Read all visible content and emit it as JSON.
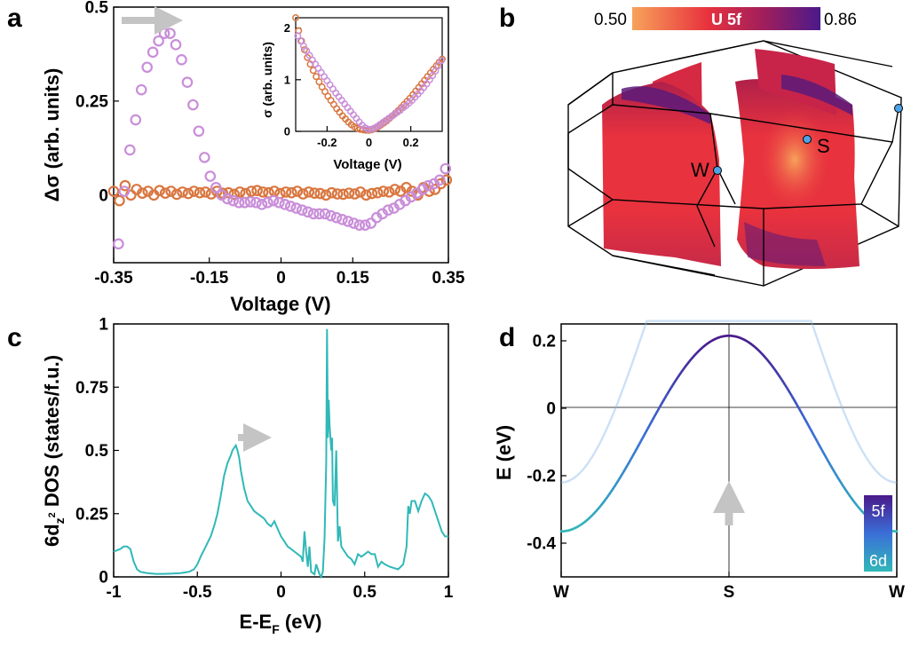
{
  "panel_labels": {
    "a": "a",
    "b": "b",
    "c": "c",
    "d": "d"
  },
  "colors": {
    "orange": "#d9763f",
    "violet": "#c98ed9",
    "teal": "#31b8b8",
    "gray_arrow": "#c4c4c4",
    "fs_red": "#e8323e",
    "fs_purple": "#5c1a7a",
    "fs_orange": "#f7a35a"
  },
  "chart_data": [
    {
      "id": "panel-a",
      "type": "scatter",
      "xlabel": "Voltage (V)",
      "ylabel": "Δσ (arb. units)",
      "xlim": [
        -0.35,
        0.35
      ],
      "ylim": [
        -0.18,
        0.5
      ],
      "xticks": [
        -0.35,
        -0.15,
        0,
        0.15,
        0.35
      ],
      "xtick_labels": [
        "-0.35",
        "-0.15",
        "0",
        "0.15",
        "0.35"
      ],
      "yticks": [
        0,
        0.25,
        0.5
      ],
      "ytick_labels": [
        "0",
        "0.25",
        "0.5"
      ],
      "series": [
        {
          "name": "orange",
          "x": [
            -0.35,
            -0.338,
            -0.326,
            -0.314,
            -0.302,
            -0.29,
            -0.278,
            -0.266,
            -0.254,
            -0.242,
            -0.23,
            -0.218,
            -0.206,
            -0.194,
            -0.182,
            -0.17,
            -0.158,
            -0.146,
            -0.134,
            -0.122,
            -0.11,
            -0.098,
            -0.086,
            -0.074,
            -0.062,
            -0.05,
            -0.038,
            -0.026,
            -0.014,
            -0.002,
            0.01,
            0.022,
            0.034,
            0.046,
            0.058,
            0.07,
            0.082,
            0.094,
            0.106,
            0.118,
            0.13,
            0.142,
            0.154,
            0.166,
            0.178,
            0.19,
            0.202,
            0.214,
            0.226,
            0.238,
            0.25,
            0.262,
            0.274,
            0.286,
            0.298,
            0.31,
            0.322,
            0.334,
            0.346
          ],
          "y": [
            0.01,
            -0.015,
            0.025,
            0.0,
            0.015,
            0.005,
            0.01,
            0.0,
            0.012,
            0.005,
            0.01,
            0.002,
            0.008,
            0.004,
            0.01,
            0.006,
            0.008,
            0.003,
            0.01,
            0.005,
            0.006,
            0.002,
            0.008,
            0.004,
            0.01,
            0.012,
            0.008,
            0.006,
            0.01,
            0.004,
            0.008,
            0.006,
            0.01,
            0.003,
            0.008,
            0.005,
            0.004,
            0.0,
            0.006,
            0.003,
            0.002,
            0.005,
            0.003,
            0.008,
            0.0,
            0.004,
            0.006,
            0.01,
            0.008,
            0.015,
            0.01,
            0.02,
            0.01,
            0.0,
            0.02,
            0.01,
            0.015,
            0.03,
            0.04
          ]
        },
        {
          "name": "violet",
          "x": [
            -0.34,
            -0.328,
            -0.316,
            -0.304,
            -0.292,
            -0.28,
            -0.268,
            -0.256,
            -0.244,
            -0.232,
            -0.22,
            -0.208,
            -0.196,
            -0.184,
            -0.172,
            -0.16,
            -0.148,
            -0.136,
            -0.124,
            -0.112,
            -0.1,
            -0.088,
            -0.076,
            -0.064,
            -0.052,
            -0.04,
            -0.028,
            -0.016,
            -0.004,
            0.008,
            0.02,
            0.032,
            0.044,
            0.056,
            0.068,
            0.08,
            0.092,
            0.104,
            0.116,
            0.128,
            0.14,
            0.152,
            0.164,
            0.176,
            0.188,
            0.2,
            0.212,
            0.224,
            0.236,
            0.248,
            0.26,
            0.272,
            0.284,
            0.296,
            0.308,
            0.32,
            0.332,
            0.344
          ],
          "y": [
            -0.13,
            0.01,
            0.12,
            0.2,
            0.28,
            0.34,
            0.38,
            0.41,
            0.43,
            0.43,
            0.4,
            0.36,
            0.3,
            0.24,
            0.17,
            0.1,
            0.05,
            0.02,
            0.0,
            -0.01,
            -0.015,
            -0.02,
            -0.02,
            -0.018,
            -0.02,
            -0.025,
            -0.02,
            -0.015,
            -0.02,
            -0.025,
            -0.03,
            -0.035,
            -0.04,
            -0.045,
            -0.05,
            -0.05,
            -0.05,
            -0.055,
            -0.06,
            -0.065,
            -0.07,
            -0.075,
            -0.08,
            -0.08,
            -0.075,
            -0.06,
            -0.05,
            -0.04,
            -0.035,
            -0.025,
            -0.015,
            -0.005,
            0.005,
            0.015,
            0.025,
            0.03,
            0.04,
            0.07
          ]
        }
      ],
      "inset": {
        "type": "scatter",
        "xlabel": "Voltage (V)",
        "ylabel": "σ (arb. units)",
        "xlim": [
          -0.35,
          0.35
        ],
        "ylim": [
          0,
          2.2
        ],
        "xticks": [
          -0.2,
          0,
          0.2
        ],
        "xtick_labels": [
          "-0.2",
          "0",
          "0.2"
        ],
        "yticks": [
          0,
          1,
          2
        ],
        "ytick_labels": [
          "0",
          "1",
          "2"
        ],
        "series": [
          {
            "name": "orange",
            "x": [
              -0.35,
              -0.336,
              -0.322,
              -0.308,
              -0.294,
              -0.28,
              -0.266,
              -0.252,
              -0.238,
              -0.224,
              -0.21,
              -0.196,
              -0.182,
              -0.168,
              -0.154,
              -0.14,
              -0.126,
              -0.112,
              -0.098,
              -0.084,
              -0.07,
              -0.056,
              -0.042,
              -0.028,
              -0.014,
              0.0,
              0.014,
              0.028,
              0.042,
              0.056,
              0.07,
              0.084,
              0.098,
              0.112,
              0.126,
              0.14,
              0.154,
              0.168,
              0.182,
              0.196,
              0.21,
              0.224,
              0.238,
              0.252,
              0.266,
              0.28,
              0.294,
              0.308,
              0.322,
              0.336,
              0.35
            ],
            "y": [
              2.2,
              1.95,
              1.75,
              1.58,
              1.43,
              1.3,
              1.18,
              1.06,
              0.96,
              0.86,
              0.77,
              0.68,
              0.6,
              0.52,
              0.44,
              0.37,
              0.3,
              0.24,
              0.18,
              0.13,
              0.09,
              0.06,
              0.04,
              0.03,
              0.02,
              0.02,
              0.03,
              0.05,
              0.08,
              0.12,
              0.16,
              0.2,
              0.25,
              0.3,
              0.35,
              0.4,
              0.46,
              0.52,
              0.58,
              0.64,
              0.71,
              0.78,
              0.85,
              0.92,
              0.99,
              1.06,
              1.13,
              1.2,
              1.27,
              1.34,
              1.4
            ]
          },
          {
            "name": "violet",
            "x": [
              -0.34,
              -0.326,
              -0.312,
              -0.298,
              -0.284,
              -0.27,
              -0.256,
              -0.242,
              -0.228,
              -0.214,
              -0.2,
              -0.186,
              -0.172,
              -0.158,
              -0.144,
              -0.13,
              -0.116,
              -0.102,
              -0.088,
              -0.074,
              -0.06,
              -0.046,
              -0.032,
              -0.018,
              -0.004,
              0.01,
              0.024,
              0.038,
              0.052,
              0.066,
              0.08,
              0.094,
              0.108,
              0.122,
              0.136,
              0.15,
              0.164,
              0.178,
              0.192,
              0.206,
              0.22,
              0.234,
              0.248,
              0.262,
              0.276,
              0.29,
              0.304,
              0.318,
              0.332,
              0.346
            ],
            "y": [
              1.85,
              1.75,
              1.65,
              1.56,
              1.47,
              1.38,
              1.3,
              1.22,
              1.14,
              1.06,
              0.98,
              0.9,
              0.82,
              0.74,
              0.67,
              0.6,
              0.53,
              0.46,
              0.39,
              0.32,
              0.25,
              0.18,
              0.12,
              0.07,
              0.04,
              0.04,
              0.06,
              0.09,
              0.13,
              0.17,
              0.21,
              0.25,
              0.29,
              0.33,
              0.37,
              0.41,
              0.46,
              0.5,
              0.55,
              0.6,
              0.66,
              0.72,
              0.78,
              0.85,
              0.92,
              1.0,
              1.08,
              1.17,
              1.27,
              1.37
            ]
          }
        ]
      }
    },
    {
      "id": "panel-c",
      "type": "line",
      "xlabel": "E-E_F (eV)",
      "ylabel": "6d_z2 DOS (states/f.u.)",
      "xlim": [
        -1,
        1
      ],
      "ylim": [
        0,
        1
      ],
      "xticks": [
        -1,
        -0.5,
        0,
        0.5,
        1
      ],
      "xtick_labels": [
        "-1",
        "-0.5",
        "0",
        "0.5",
        "1"
      ],
      "yticks": [
        0,
        0.25,
        0.5,
        0.75,
        1
      ],
      "ytick_labels": [
        "0",
        "0.25",
        "0.5",
        "0.75",
        "1"
      ],
      "series": [
        {
          "name": "DOS",
          "x": [
            -1.0,
            -0.96,
            -0.94,
            -0.92,
            -0.9,
            -0.88,
            -0.86,
            -0.84,
            -0.8,
            -0.75,
            -0.7,
            -0.65,
            -0.6,
            -0.55,
            -0.52,
            -0.5,
            -0.48,
            -0.45,
            -0.42,
            -0.4,
            -0.38,
            -0.36,
            -0.34,
            -0.32,
            -0.3,
            -0.29,
            -0.28,
            -0.27,
            -0.26,
            -0.25,
            -0.24,
            -0.22,
            -0.2,
            -0.18,
            -0.16,
            -0.14,
            -0.12,
            -0.1,
            -0.08,
            -0.06,
            -0.04,
            -0.02,
            0.0,
            0.02,
            0.04,
            0.06,
            0.08,
            0.1,
            0.12,
            0.13,
            0.14,
            0.15,
            0.16,
            0.17,
            0.18,
            0.2,
            0.21,
            0.22,
            0.23,
            0.24,
            0.25,
            0.26,
            0.27,
            0.275,
            0.28,
            0.285,
            0.29,
            0.3,
            0.305,
            0.31,
            0.32,
            0.33,
            0.34,
            0.35,
            0.36,
            0.38,
            0.4,
            0.42,
            0.44,
            0.46,
            0.48,
            0.5,
            0.52,
            0.54,
            0.56,
            0.58,
            0.6,
            0.62,
            0.65,
            0.7,
            0.73,
            0.75,
            0.76,
            0.77,
            0.78,
            0.8,
            0.82,
            0.84,
            0.86,
            0.88,
            0.9,
            0.92,
            0.94,
            0.96,
            0.98,
            1.0
          ],
          "y": [
            0.1,
            0.11,
            0.12,
            0.12,
            0.11,
            0.06,
            0.03,
            0.02,
            0.015,
            0.012,
            0.012,
            0.013,
            0.015,
            0.02,
            0.03,
            0.05,
            0.08,
            0.12,
            0.16,
            0.2,
            0.25,
            0.32,
            0.4,
            0.45,
            0.48,
            0.5,
            0.51,
            0.52,
            0.5,
            0.47,
            0.42,
            0.35,
            0.3,
            0.28,
            0.26,
            0.25,
            0.24,
            0.23,
            0.21,
            0.2,
            0.22,
            0.19,
            0.16,
            0.14,
            0.12,
            0.11,
            0.1,
            0.09,
            0.08,
            0.06,
            0.18,
            0.1,
            0.04,
            0.12,
            0.02,
            0.01,
            0.05,
            0.03,
            0.01,
            0.0,
            0.02,
            0.15,
            0.45,
            0.98,
            0.55,
            0.7,
            0.6,
            0.5,
            0.55,
            0.3,
            0.28,
            0.5,
            0.14,
            0.2,
            0.12,
            0.1,
            0.08,
            0.07,
            0.05,
            0.09,
            0.08,
            0.09,
            0.1,
            0.09,
            0.09,
            0.04,
            0.06,
            0.05,
            0.04,
            0.03,
            0.05,
            0.12,
            0.28,
            0.25,
            0.3,
            0.3,
            0.26,
            0.3,
            0.33,
            0.32,
            0.3,
            0.26,
            0.22,
            0.18,
            0.16,
            0.16
          ]
        }
      ]
    },
    {
      "id": "panel-d",
      "type": "line",
      "xlabel": "",
      "ylabel": "E (eV)",
      "xlim": [
        0,
        2
      ],
      "ylim": [
        -0.5,
        0.25
      ],
      "xticks": [
        0,
        1,
        2
      ],
      "xtick_labels": [
        "W",
        "S",
        "W"
      ],
      "yticks": [
        -0.4,
        -0.2,
        0,
        0.2
      ],
      "ytick_labels": [
        "-0.4",
        "-0.2",
        "0",
        "0.2"
      ],
      "series": [
        {
          "name": "lower band",
          "min_energy": -0.365,
          "edge_energy": 0.215,
          "character": "5f to 6d gradient"
        },
        {
          "name": "upper band (faded)",
          "min_energy": -0.22,
          "character": "faded copy"
        }
      ],
      "colorbar": {
        "top_label": "5f",
        "bottom_label": "6d",
        "top_color": "#4a1a8a",
        "bottom_color": "#31b8b8"
      }
    }
  ],
  "panel_b": {
    "colorbar_min": "0.50",
    "colorbar_max": "0.86",
    "colorbar_title": "U 5f",
    "point_labels": {
      "w": "W",
      "s": "S"
    }
  }
}
